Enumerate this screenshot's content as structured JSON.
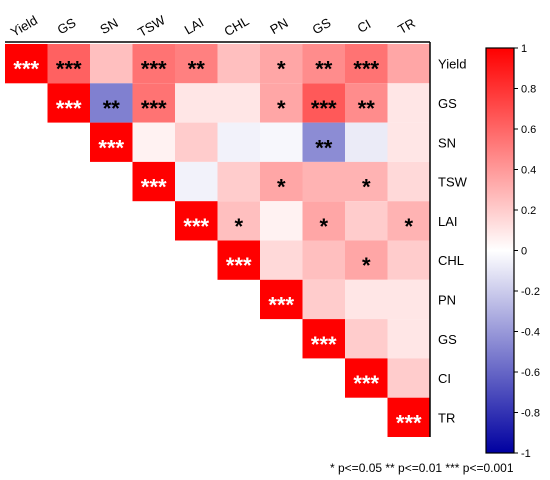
{
  "chart_data": {
    "type": "heatmap",
    "variables": [
      "Yield",
      "GS",
      "SN",
      "TSW",
      "LAI",
      "CHL",
      "PN",
      "GS",
      "CI",
      "TR"
    ],
    "matrix": [
      [
        1.0,
        0.62,
        0.25,
        0.55,
        0.5,
        0.25,
        0.35,
        0.45,
        0.55,
        0.35
      ],
      [
        null,
        1.0,
        -0.5,
        0.55,
        0.1,
        0.1,
        0.35,
        0.65,
        0.45,
        0.1
      ],
      [
        null,
        null,
        1.0,
        0.05,
        0.2,
        -0.05,
        -0.03,
        -0.45,
        -0.08,
        0.1
      ],
      [
        null,
        null,
        null,
        1.0,
        -0.05,
        0.2,
        0.35,
        0.3,
        0.3,
        0.15
      ],
      [
        null,
        null,
        null,
        null,
        1.0,
        0.25,
        0.05,
        0.35,
        0.2,
        0.3
      ],
      [
        null,
        null,
        null,
        null,
        null,
        1.0,
        0.15,
        0.25,
        0.35,
        0.2
      ],
      [
        null,
        null,
        null,
        null,
        null,
        null,
        1.0,
        0.2,
        0.1,
        0.1
      ],
      [
        null,
        null,
        null,
        null,
        null,
        null,
        null,
        1.0,
        0.2,
        0.1
      ],
      [
        null,
        null,
        null,
        null,
        null,
        null,
        null,
        null,
        1.0,
        0.2
      ],
      [
        null,
        null,
        null,
        null,
        null,
        null,
        null,
        null,
        null,
        1.0
      ]
    ],
    "significance": [
      [
        "***",
        "***",
        "",
        "***",
        "**",
        "",
        "*",
        "**",
        "***",
        ""
      ],
      [
        "",
        "***",
        "**",
        "***",
        "",
        "",
        "*",
        "***",
        "**",
        ""
      ],
      [
        "",
        "",
        "***",
        "",
        "",
        "",
        "",
        "**",
        "",
        ""
      ],
      [
        "",
        "",
        "",
        "***",
        "",
        "",
        "*",
        "",
        "*",
        ""
      ],
      [
        "",
        "",
        "",
        "",
        "***",
        "*",
        "",
        "*",
        "",
        "*"
      ],
      [
        "",
        "",
        "",
        "",
        "",
        "***",
        "",
        "",
        "*",
        ""
      ],
      [
        "",
        "",
        "",
        "",
        "",
        "",
        "***",
        "",
        "",
        ""
      ],
      [
        "",
        "",
        "",
        "",
        "",
        "",
        "",
        "***",
        "",
        ""
      ],
      [
        "",
        "",
        "",
        "",
        "",
        "",
        "",
        "",
        "***",
        ""
      ],
      [
        "",
        "",
        "",
        "",
        "",
        "",
        "",
        "",
        "",
        "***"
      ]
    ],
    "colorbar": {
      "range": [
        -1,
        1
      ],
      "ticks": [
        "1",
        "0.8",
        "0.6",
        "0.4",
        "0.2",
        "0",
        "-0.2",
        "-0.4",
        "-0.6",
        "-0.8",
        "-1"
      ],
      "colors": {
        "low": "#0000a0",
        "mid": "#ffffff",
        "high": "#ff0000"
      }
    },
    "legend_note": "* p<=0.05   ** p<=0.01   *** p<=0.001"
  }
}
